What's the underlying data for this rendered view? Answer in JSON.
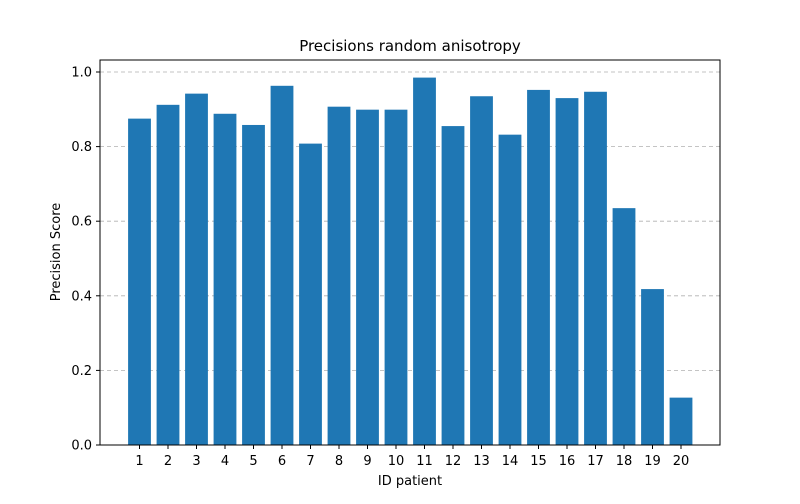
{
  "chart_data": {
    "type": "bar",
    "title": "Precisions random anisotropy",
    "xlabel": "ID patient",
    "ylabel": "Precision Score",
    "categories": [
      "1",
      "2",
      "3",
      "4",
      "5",
      "6",
      "7",
      "8",
      "9",
      "10",
      "11",
      "12",
      "13",
      "14",
      "15",
      "16",
      "17",
      "18",
      "19",
      "20"
    ],
    "values": [
      0.875,
      0.912,
      0.942,
      0.888,
      0.858,
      0.963,
      0.808,
      0.907,
      0.899,
      0.899,
      0.985,
      0.855,
      0.935,
      0.832,
      0.952,
      0.93,
      0.947,
      0.635,
      0.418,
      0.127
    ],
    "ylim": [
      0,
      1.0
    ],
    "yticks": [
      "0.0",
      "0.2",
      "0.4",
      "0.6",
      "0.8",
      "1.0"
    ],
    "ytick_values": [
      0,
      0.2,
      0.4,
      0.6,
      0.8,
      1.0
    ],
    "grid": "y-dashed",
    "bar_color": "#1f77b4",
    "grid_color": "#b0b0b0"
  }
}
